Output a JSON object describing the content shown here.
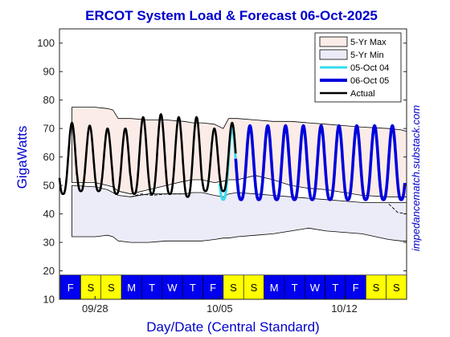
{
  "chart_data": {
    "type": "line",
    "title": "ERCOT System Load & Forecast 06-Oct-2025",
    "xlabel": "Day/Date (Central Standard)",
    "ylabel": "GigaWatts",
    "ylim": [
      10,
      105
    ],
    "yticks": [
      10,
      20,
      30,
      40,
      50,
      60,
      70,
      80,
      90,
      100
    ],
    "xlim": [
      0,
      19.5
    ],
    "xticks": [
      {
        "pos": 2,
        "label": "09/28"
      },
      {
        "pos": 9,
        "label": "10/05"
      },
      {
        "pos": 16,
        "label": "10/12"
      }
    ],
    "day_strip": [
      "F",
      "S",
      "S",
      "M",
      "T",
      "W",
      "T",
      "F",
      "S",
      "S",
      "M",
      "T",
      "W",
      "T",
      "F",
      "S",
      "S"
    ],
    "weekday_color": "#0000ee",
    "weekend_color": "#ffff00",
    "credit": "impedancematch.substack.com",
    "legend_position": "top-right",
    "grid": false,
    "legend": [
      "5-Yr Max",
      "5-Yr Min",
      "05-Oct 04",
      "06-Oct 05",
      "Actual"
    ],
    "colors": {
      "max_fill": "#fbece8",
      "min_fill": "#ececf8",
      "forecast_prev": "#33ddee",
      "forecast_curr": "#0000dd",
      "actual": "#000000"
    },
    "envelope": {
      "x": [
        0.7,
        2.0,
        2.7,
        3.0,
        3.3,
        4.0,
        5.0,
        6.0,
        7.0,
        7.5,
        8.0,
        8.7,
        9.2,
        9.5,
        10.0,
        11.0,
        12.0,
        13.0,
        14.0,
        15.0,
        16.0,
        17.0,
        18.5,
        19.2,
        19.5
      ],
      "max_upper": [
        77.5,
        77.5,
        77.0,
        76.5,
        73.5,
        73.5,
        73.0,
        73.0,
        72.5,
        72.0,
        72.0,
        71.5,
        70.0,
        73.5,
        73.5,
        73.0,
        72.5,
        72.5,
        72.0,
        71.5,
        71.0,
        70.5,
        70.0,
        69.5,
        69.0
      ],
      "max_lower": [
        51.0,
        51.0,
        50.0,
        49.5,
        48.0,
        47.0,
        48.5,
        50.0,
        51.5,
        52.0,
        52.0,
        51.0,
        51.5,
        52.0,
        52.0,
        53.5,
        52.0,
        50.0,
        49.0,
        48.5,
        47.5,
        46.5,
        46.0,
        46.0,
        46.0
      ],
      "min_upper": [
        50.0,
        49.5,
        48.5,
        47.5,
        46.5,
        46.0,
        47.0,
        47.0,
        47.0,
        47.5,
        47.5,
        46.5,
        46.0,
        47.0,
        47.5,
        47.0,
        46.5,
        46.0,
        45.5,
        45.0,
        44.5,
        44.0,
        44.0,
        44.0,
        44.0
      ],
      "min_lower": [
        32.0,
        32.0,
        32.5,
        32.0,
        30.5,
        30.0,
        30.0,
        30.5,
        30.5,
        30.5,
        30.5,
        31.0,
        31.5,
        31.5,
        32.0,
        32.5,
        33.0,
        34.0,
        35.0,
        34.0,
        33.5,
        33.0,
        31.0,
        30.5,
        30.5
      ]
    },
    "dashed_segments": [
      {
        "x": [
          4.0,
          4.6,
          5.2,
          6.0,
          7.0
        ],
        "y": [
          46.0,
          47.0,
          46.5,
          47.0,
          47.0
        ]
      },
      {
        "x": [
          18.5,
          19.0,
          19.5
        ],
        "y": [
          43.5,
          40.5,
          40.0
        ]
      }
    ],
    "series": [
      {
        "name": "Actual",
        "peaks": [
          72,
          71,
          70,
          70,
          74,
          75,
          74,
          74,
          70,
          72
        ],
        "troughs": [
          47,
          48,
          48,
          47,
          47,
          47,
          47,
          46,
          48,
          48
        ],
        "start_day": 0.0,
        "end_day": 9.9
      },
      {
        "name": "05-Oct 04",
        "peaks": [
          73,
          74,
          75,
          73,
          72,
          71,
          70,
          70,
          69,
          70
        ],
        "troughs": [
          48,
          48,
          47,
          47,
          48,
          46,
          46,
          45,
          45,
          45
        ],
        "start_day": 9.0,
        "end_day": 19.4
      },
      {
        "name": "06-Oct 05",
        "peaks": [
          73,
          75,
          76,
          74,
          72,
          71,
          70,
          71,
          71
        ],
        "troughs": [
          48,
          49,
          48,
          48,
          48,
          47,
          46,
          45,
          45
        ],
        "start_day": 9.9,
        "end_day": 19.4
      }
    ]
  }
}
